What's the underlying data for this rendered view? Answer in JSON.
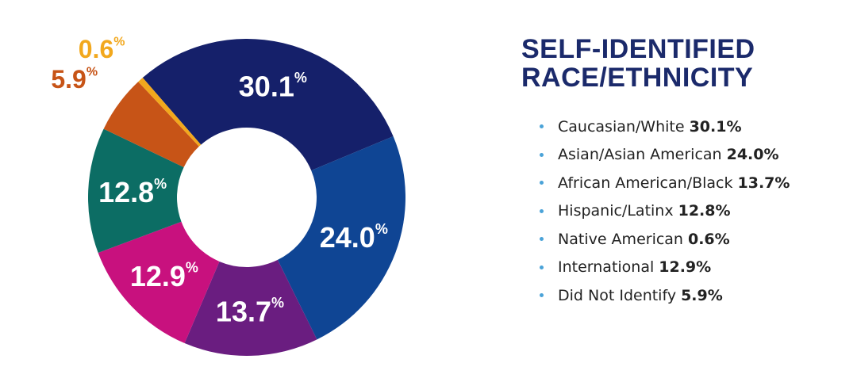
{
  "title": {
    "line1": "SELF-IDENTIFIED",
    "line2": "RACE/ETHNICITY"
  },
  "legend_items": [
    {
      "label": "Caucasian/White",
      "value": "30.1%"
    },
    {
      "label": "Asian/Asian American",
      "value": "24.0%"
    },
    {
      "label": "African American/Black",
      "value": "13.7%"
    },
    {
      "label": "Hispanic/Latinx",
      "value": "12.8%"
    },
    {
      "label": "Native American",
      "value": "0.6%"
    },
    {
      "label": "International",
      "value": "12.9%"
    },
    {
      "label": "Did Not Identify",
      "value": "5.9%"
    }
  ],
  "colors": {
    "title": "#1b2a6b",
    "bullet": "#4aa3d8",
    "text": "#222222"
  },
  "chart_data": {
    "type": "pie",
    "style": "donut",
    "unit": "%",
    "slices": [
      {
        "label": "Caucasian/White",
        "value": 30.1,
        "display": "30.1",
        "color": "#15206a",
        "label_color": "#ffffff",
        "label_position": "inside"
      },
      {
        "label": "Asian/Asian American",
        "value": 24.0,
        "display": "24.0",
        "color": "#0f4594",
        "label_color": "#ffffff",
        "label_position": "inside"
      },
      {
        "label": "African American/Black",
        "value": 13.7,
        "display": "13.7",
        "color": "#6a1d80",
        "label_color": "#ffffff",
        "label_position": "inside"
      },
      {
        "label": "International",
        "value": 12.9,
        "display": "12.9",
        "color": "#c8117e",
        "label_color": "#ffffff",
        "label_position": "inside"
      },
      {
        "label": "Hispanic/Latinx",
        "value": 12.8,
        "display": "12.8",
        "color": "#0c6d64",
        "label_color": "#ffffff",
        "label_position": "inside"
      },
      {
        "label": "Did Not Identify",
        "value": 5.9,
        "display": "5.9",
        "color": "#c75417",
        "label_color": "#c75417",
        "label_position": "outside"
      },
      {
        "label": "Native American",
        "value": 0.6,
        "display": "0.6",
        "color": "#f2a81d",
        "label_color": "#f2a81d",
        "label_position": "outside"
      }
    ]
  }
}
